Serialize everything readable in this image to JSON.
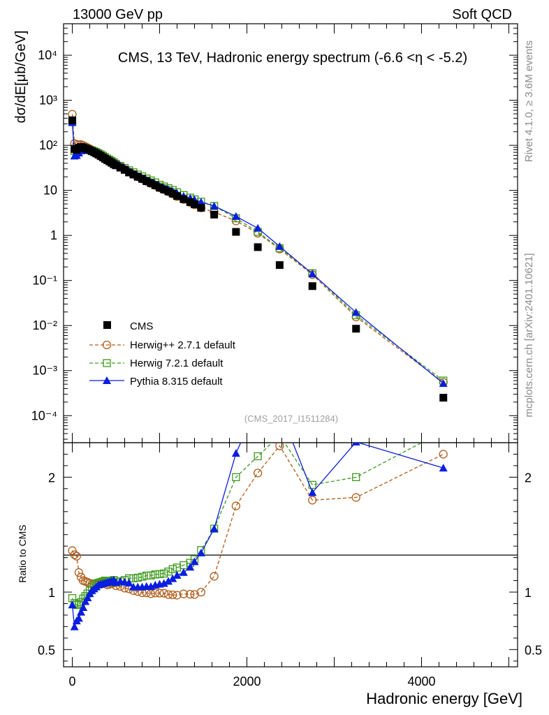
{
  "header": {
    "left": "13000 GeV pp",
    "right": "Soft QCD"
  },
  "side_text": {
    "upper": "Rivet 4.1.0, ≥ 3.6M events",
    "lower": "mcplots.cern.ch [arXiv:2401.10621]"
  },
  "colors": {
    "cms": "#000000",
    "herwigpp": "#b15c1a",
    "herwig7": "#3c9a1e",
    "pythia": "#0a1ee0"
  },
  "chart_data": {
    "type": "scatter",
    "title": "CMS, 13 TeV, Hadronic energy spectrum (-6.6 <η < -5.2)",
    "analysis_tag": "(CMS_2017_I1511284)",
    "xlabel": "Hadronic energy [GeV]",
    "ylabel": "dσ/dE[μb/GeV]",
    "ratio_ylabel": "Ratio to CMS",
    "xlim": [
      -100,
      5100
    ],
    "ylim": [
      2.51e-05,
      50000
    ],
    "ratio_ylim": [
      0.35,
      2.3
    ],
    "x_ticks": [
      {
        "value": 0,
        "label": "0"
      },
      {
        "value": 2000,
        "label": "2000"
      },
      {
        "value": 4000,
        "label": "4000"
      }
    ],
    "y_ticks": [
      {
        "value": 0.0001,
        "label": "10⁻⁴"
      },
      {
        "value": 0.001,
        "label": "10⁻³"
      },
      {
        "value": 0.01,
        "label": "10⁻²"
      },
      {
        "value": 0.1,
        "label": "10⁻¹"
      },
      {
        "value": 1,
        "label": "1"
      },
      {
        "value": 10,
        "label": "10"
      },
      {
        "value": 100,
        "label": "10²"
      },
      {
        "value": 1000,
        "label": "10³"
      },
      {
        "value": 10000,
        "label": "10⁴"
      }
    ],
    "ratio_ticks": [
      {
        "value": 0.5,
        "label": "0.5"
      },
      {
        "value": 1,
        "label": "1"
      },
      {
        "value": 2,
        "label": "2"
      }
    ],
    "legend": [
      "CMS",
      "Herwig++ 2.7.1 default",
      "Herwig 7.2.1 default",
      "Pythia 8.315 default"
    ],
    "x": [
      0,
      25,
      50,
      75,
      100,
      125,
      150,
      175,
      200,
      225,
      250,
      275,
      300,
      325,
      350,
      375,
      400,
      425,
      450,
      475,
      500,
      550,
      600,
      650,
      700,
      750,
      800,
      850,
      900,
      950,
      1000,
      1050,
      1100,
      1150,
      1200,
      1275,
      1350,
      1400,
      1475,
      1625,
      1875,
      2125,
      2375,
      2750,
      3250,
      4250
    ],
    "series": [
      {
        "name": "CMS",
        "key": "cms",
        "values": [
          360,
          83,
          80,
          88,
          92,
          90,
          86,
          82,
          78,
          74,
          70,
          66,
          62,
          58,
          54,
          50,
          47,
          44,
          41,
          38,
          36,
          32,
          28.5,
          25,
          22.5,
          20,
          18,
          16,
          14.5,
          13,
          11.5,
          10.5,
          9.5,
          8.5,
          7.5,
          6.4,
          5.5,
          4.9,
          4.1,
          2.9,
          1.2,
          0.55,
          0.22,
          0.075,
          0.0085,
          0.00025
        ]
      },
      {
        "name": "Herwig++ 2.7.1 default",
        "key": "herwigpp",
        "values": [
          490,
          110,
          105,
          103,
          104,
          99,
          94,
          89,
          84,
          79,
          75,
          70,
          66,
          62,
          58,
          54,
          50,
          47,
          44,
          41,
          38,
          33.6,
          29.5,
          25.7,
          22.8,
          20.1,
          17.9,
          15.9,
          14.3,
          12.9,
          11.4,
          10.4,
          9.3,
          8.3,
          7.3,
          6.3,
          5.4,
          4.8,
          4.1,
          3.3,
          2.1,
          1.12,
          0.5,
          0.135,
          0.0155,
          0.00055
        ]
      },
      {
        "name": "Herwig 7.2.1 default",
        "key": "herwig7",
        "values": [
          341,
          75,
          71,
          79,
          84,
          85,
          83,
          81,
          79,
          77,
          74,
          71,
          67,
          63,
          59,
          55,
          51,
          48,
          45,
          42,
          39,
          35,
          31.5,
          28,
          25.2,
          22.5,
          20.4,
          18.3,
          16.6,
          15,
          13.3,
          12.2,
          11.2,
          10.2,
          9.1,
          7.9,
          6.9,
          6.3,
          5.6,
          4.5,
          2.4,
          1.2,
          0.52,
          0.145,
          0.017,
          0.0006
        ]
      },
      {
        "name": "Pythia 8.315 default",
        "key": "pythia",
        "values": [
          320,
          58,
          60,
          68,
          76,
          78,
          79,
          78,
          77,
          75,
          72,
          69,
          66,
          62,
          58,
          54,
          51,
          48,
          45,
          42,
          39,
          35,
          31,
          27,
          23.5,
          20.9,
          18.8,
          16.8,
          15.2,
          13.8,
          12.3,
          11.3,
          10.4,
          9.5,
          8.6,
          7.5,
          6.7,
          6.2,
          5.5,
          4.5,
          2.65,
          1.45,
          0.57,
          0.14,
          0.0196,
          0.00052
        ]
      }
    ]
  }
}
